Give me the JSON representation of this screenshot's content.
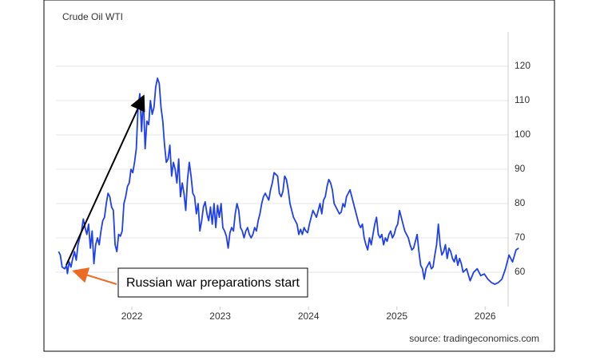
{
  "chart_data": {
    "type": "line",
    "title": "Crude Oil WTI",
    "annotation": "Russian war preparations start",
    "source": "source: tradingeconomics.com",
    "xlim": [
      2021.14,
      2026.26
    ],
    "xticks": [
      2022,
      2023,
      2024,
      2025,
      2026
    ],
    "ylim": [
      50,
      130
    ],
    "yticks": [
      60,
      70,
      80,
      90,
      100,
      110,
      120
    ],
    "grid": true,
    "series": [
      {
        "name": "Crude Oil WTI",
        "color": "#1f3ff0",
        "x": [
          2021.17,
          2021.19,
          2021.21,
          2021.24,
          2021.26,
          2021.27,
          2021.29,
          2021.31,
          2021.33,
          2021.35,
          2021.37,
          2021.39,
          2021.41,
          2021.43,
          2021.45,
          2021.47,
          2021.49,
          2021.51,
          2021.53,
          2021.55,
          2021.57,
          2021.59,
          2021.61,
          2021.63,
          2021.65,
          2021.67,
          2021.69,
          2021.71,
          2021.73,
          2021.75,
          2021.77,
          2021.79,
          2021.81,
          2021.83,
          2021.85,
          2021.87,
          2021.89,
          2021.91,
          2021.93,
          2021.95,
          2021.97,
          2021.99,
          2022.01,
          2022.03,
          2022.05,
          2022.07,
          2022.09,
          2022.11,
          2022.13,
          2022.15,
          2022.17,
          2022.19,
          2022.21,
          2022.23,
          2022.25,
          2022.27,
          2022.29,
          2022.31,
          2022.33,
          2022.35,
          2022.37,
          2022.39,
          2022.41,
          2022.43,
          2022.45,
          2022.47,
          2022.49,
          2022.51,
          2022.53,
          2022.55,
          2022.57,
          2022.59,
          2022.61,
          2022.63,
          2022.65,
          2022.67,
          2022.69,
          2022.71,
          2022.73,
          2022.75,
          2022.77,
          2022.79,
          2022.81,
          2022.83,
          2022.85,
          2022.87,
          2022.89,
          2022.91,
          2022.93,
          2022.95,
          2022.97,
          2022.99,
          2023.01,
          2023.03,
          2023.05,
          2023.07,
          2023.09,
          2023.11,
          2023.13,
          2023.15,
          2023.17,
          2023.19,
          2023.21,
          2023.23,
          2023.25,
          2023.27,
          2023.29,
          2023.31,
          2023.33,
          2023.35,
          2023.37,
          2023.39,
          2023.41,
          2023.43,
          2023.45,
          2023.47,
          2023.49,
          2023.51,
          2023.53,
          2023.55,
          2023.57,
          2023.59,
          2023.61,
          2023.63,
          2023.65,
          2023.67,
          2023.69,
          2023.71,
          2023.73,
          2023.75,
          2023.77,
          2023.79,
          2023.81,
          2023.83,
          2023.85,
          2023.87,
          2023.89,
          2023.91,
          2023.93,
          2023.95,
          2023.97,
          2023.99,
          2024.01,
          2024.03,
          2024.05,
          2024.07,
          2024.09,
          2024.11,
          2024.13,
          2024.15,
          2024.17,
          2024.19,
          2024.21,
          2024.23,
          2024.25,
          2024.27,
          2024.29,
          2024.31,
          2024.33,
          2024.35,
          2024.37,
          2024.39,
          2024.41,
          2024.43,
          2024.45,
          2024.47,
          2024.49,
          2024.51,
          2024.53,
          2024.55,
          2024.57,
          2024.59,
          2024.61,
          2024.63,
          2024.65,
          2024.67,
          2024.69,
          2024.71,
          2024.73,
          2024.75,
          2024.77,
          2024.79,
          2024.81,
          2024.83,
          2024.85,
          2024.87,
          2024.89,
          2024.91,
          2024.93,
          2024.95,
          2024.97,
          2024.99,
          2025.01,
          2025.03,
          2025.05,
          2025.07,
          2025.09,
          2025.11,
          2025.13,
          2025.15,
          2025.17,
          2025.19,
          2025.21,
          2025.23,
          2025.25,
          2025.27,
          2025.29,
          2025.31,
          2025.33,
          2025.35,
          2025.37,
          2025.39,
          2025.41,
          2025.43,
          2025.45,
          2025.47,
          2025.49,
          2025.51,
          2025.53,
          2025.55,
          2025.57,
          2025.59,
          2025.61,
          2025.63,
          2025.65,
          2025.67,
          2025.69,
          2025.71,
          2025.73,
          2025.75,
          2025.79,
          2025.83,
          2025.87,
          2025.91,
          2025.95,
          2025.99,
          2026.03,
          2026.07,
          2026.11,
          2026.15,
          2026.19,
          2026.23,
          2026.27,
          2026.31,
          2026.35,
          2026.38
        ],
        "values": [
          66,
          65,
          61.5,
          61,
          62,
          59.6,
          63,
          61.5,
          64,
          66,
          63.5,
          68,
          70,
          72,
          75.5,
          73,
          71,
          74,
          67,
          72,
          62.5,
          68,
          70,
          68,
          72,
          75,
          76,
          80,
          83,
          82,
          79,
          78,
          68,
          66,
          71,
          70.5,
          72,
          80,
          82,
          85,
          86,
          90,
          89,
          92,
          96,
          108,
          112,
          101,
          111,
          96,
          104,
          103,
          110,
          106,
          108,
          114,
          116.5,
          115,
          108,
          104,
          97,
          92,
          93,
          97,
          88,
          92,
          90,
          86,
          93,
          82,
          86,
          83,
          78,
          87,
          92,
          88,
          83,
          82,
          77,
          80,
          72,
          75,
          79,
          80.5,
          77,
          75,
          79,
          74,
          80,
          73,
          79.5,
          76,
          80,
          73,
          72,
          70.5,
          67,
          71.5,
          73,
          72,
          77,
          80,
          78,
          73,
          72,
          70,
          72,
          73,
          71,
          70,
          71,
          73,
          72,
          75,
          77,
          80,
          82,
          83,
          82,
          81,
          84,
          86,
          89,
          88.5,
          88,
          83,
          82,
          83.5,
          88,
          87,
          84,
          80,
          78,
          76,
          75,
          74,
          71,
          72.5,
          71,
          73,
          72,
          71.5,
          74,
          76,
          78,
          77,
          76,
          78,
          80,
          77,
          81,
          82,
          85,
          87,
          86,
          84,
          80,
          79,
          78,
          77,
          77.5,
          80,
          79,
          82,
          83,
          84,
          82,
          80,
          78,
          76,
          74,
          73,
          74,
          70,
          68,
          66.5,
          70,
          68,
          71,
          74,
          76,
          71,
          70,
          71,
          68,
          70,
          69,
          71,
          72,
          70,
          71,
          73,
          74,
          78,
          76,
          74,
          72,
          71,
          70,
          68,
          66.5,
          67,
          69,
          71,
          66,
          62,
          61,
          58,
          61,
          62,
          63,
          61,
          61.5,
          65,
          68,
          74,
          68,
          65,
          66,
          68,
          64,
          67,
          66,
          64,
          63,
          65,
          62,
          64,
          62.5,
          60,
          61,
          57.5,
          60,
          61,
          59,
          59.5,
          58,
          57,
          56.5,
          57,
          58,
          61,
          65,
          63,
          66.5,
          67
        ]
      }
    ]
  }
}
